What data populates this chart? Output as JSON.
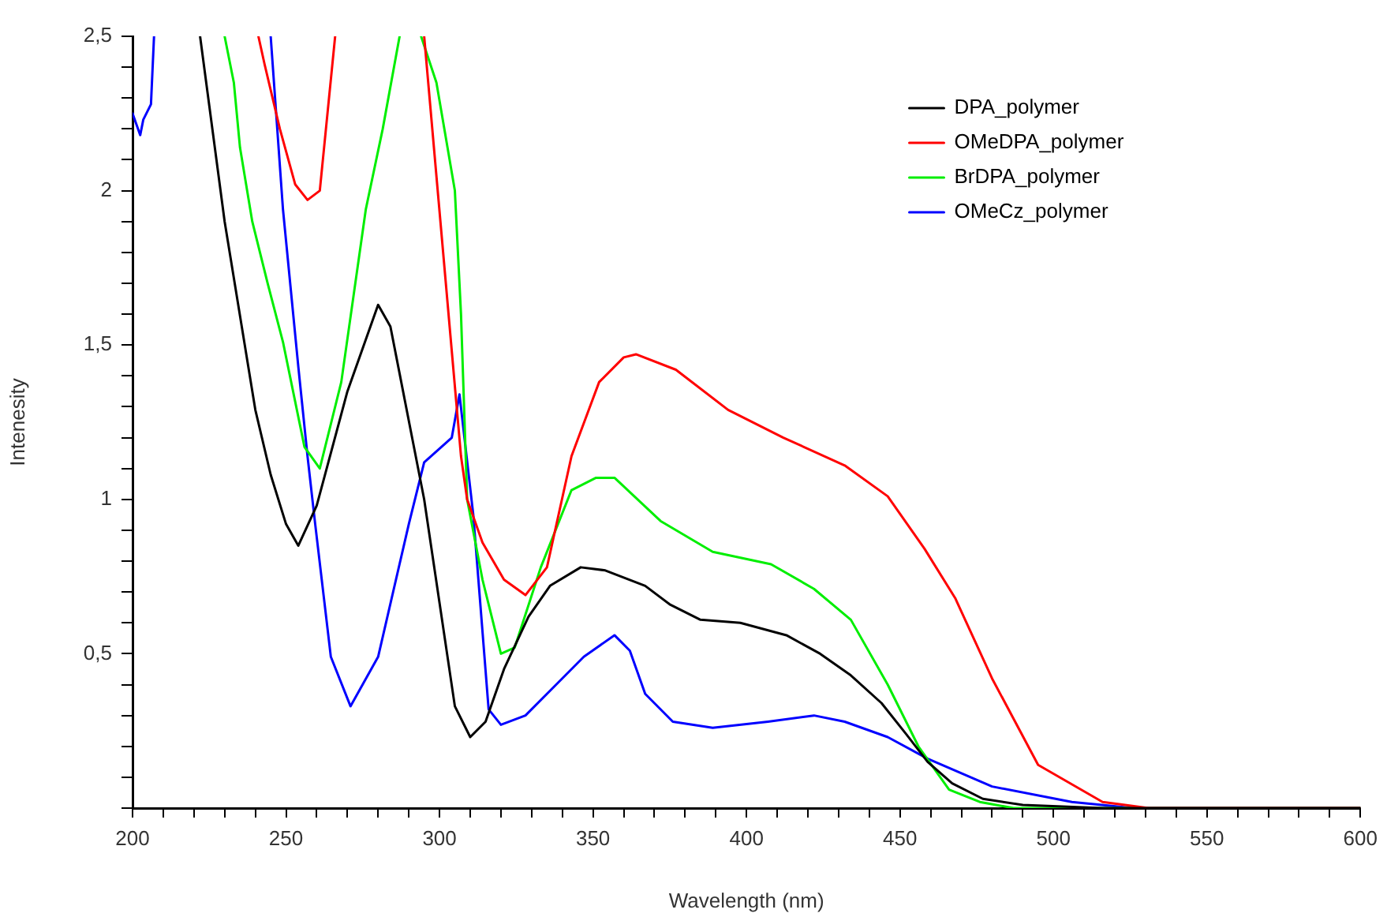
{
  "chart_data": {
    "type": "line",
    "xlabel": "Wavelength (nm)",
    "ylabel": "Intenesity",
    "legend": "top right",
    "grid": false,
    "marker": "none",
    "line_style": "solid",
    "xlim": [
      200,
      600
    ],
    "ylim": [
      0,
      2.5
    ],
    "xticks": [
      {
        "value": 200,
        "label": "200"
      },
      {
        "value": 210,
        "label": null
      },
      {
        "value": 220,
        "label": null
      },
      {
        "value": 230,
        "label": null
      },
      {
        "value": 240,
        "label": null
      },
      {
        "value": 250,
        "label": "250"
      },
      {
        "value": 260,
        "label": null
      },
      {
        "value": 270,
        "label": null
      },
      {
        "value": 280,
        "label": null
      },
      {
        "value": 290,
        "label": null
      },
      {
        "value": 300,
        "label": "300"
      },
      {
        "value": 310,
        "label": null
      },
      {
        "value": 320,
        "label": null
      },
      {
        "value": 330,
        "label": null
      },
      {
        "value": 340,
        "label": null
      },
      {
        "value": 350,
        "label": "350"
      },
      {
        "value": 360,
        "label": null
      },
      {
        "value": 370,
        "label": null
      },
      {
        "value": 380,
        "label": null
      },
      {
        "value": 390,
        "label": null
      },
      {
        "value": 400,
        "label": "400"
      },
      {
        "value": 410,
        "label": null
      },
      {
        "value": 420,
        "label": null
      },
      {
        "value": 430,
        "label": null
      },
      {
        "value": 440,
        "label": null
      },
      {
        "value": 450,
        "label": "450"
      },
      {
        "value": 460,
        "label": null
      },
      {
        "value": 470,
        "label": null
      },
      {
        "value": 480,
        "label": null
      },
      {
        "value": 490,
        "label": null
      },
      {
        "value": 500,
        "label": "500"
      },
      {
        "value": 510,
        "label": null
      },
      {
        "value": 520,
        "label": null
      },
      {
        "value": 530,
        "label": null
      },
      {
        "value": 540,
        "label": null
      },
      {
        "value": 550,
        "label": "550"
      },
      {
        "value": 560,
        "label": null
      },
      {
        "value": 570,
        "label": null
      },
      {
        "value": 580,
        "label": null
      },
      {
        "value": 590,
        "label": null
      },
      {
        "value": 600,
        "label": "600"
      }
    ],
    "yticks": [
      {
        "value": 0,
        "label": null
      },
      {
        "value": 0.1,
        "label": null
      },
      {
        "value": 0.2,
        "label": null
      },
      {
        "value": 0.3,
        "label": null
      },
      {
        "value": 0.4,
        "label": null
      },
      {
        "value": 0.5,
        "label": "0,5"
      },
      {
        "value": 0.6,
        "label": null
      },
      {
        "value": 0.7,
        "label": null
      },
      {
        "value": 0.8,
        "label": null
      },
      {
        "value": 0.9,
        "label": null
      },
      {
        "value": 1,
        "label": "1"
      },
      {
        "value": 1.1,
        "label": null
      },
      {
        "value": 1.2,
        "label": null
      },
      {
        "value": 1.3,
        "label": null
      },
      {
        "value": 1.4,
        "label": null
      },
      {
        "value": 1.5,
        "label": "1,5"
      },
      {
        "value": 1.6,
        "label": null
      },
      {
        "value": 1.7,
        "label": null
      },
      {
        "value": 1.8,
        "label": null
      },
      {
        "value": 1.9,
        "label": null
      },
      {
        "value": 2,
        "label": "2"
      },
      {
        "value": 2.1,
        "label": null
      },
      {
        "value": 2.2,
        "label": null
      },
      {
        "value": 2.3,
        "label": null
      },
      {
        "value": 2.4,
        "label": null
      },
      {
        "value": 2.5,
        "label": "2,5"
      }
    ],
    "series": [
      {
        "name": "DPA_polymer",
        "color": "#000000",
        "x": [
          222,
          230,
          240,
          245,
          250,
          254,
          260,
          270,
          280,
          284,
          295,
          305,
          310,
          315,
          321,
          329,
          336,
          346,
          354,
          367,
          375,
          385,
          398,
          413,
          424,
          434,
          444,
          452,
          459,
          467,
          477,
          490,
          516,
          600
        ],
        "values": [
          2.5,
          1.9,
          1.29,
          1.08,
          0.92,
          0.85,
          0.98,
          1.35,
          1.63,
          1.56,
          1.0,
          0.33,
          0.23,
          0.28,
          0.45,
          0.62,
          0.72,
          0.78,
          0.77,
          0.72,
          0.66,
          0.61,
          0.6,
          0.56,
          0.5,
          0.43,
          0.34,
          0.24,
          0.15,
          0.08,
          0.03,
          0.01,
          0,
          0
        ]
      },
      {
        "name": "OMeDPA_polymer",
        "color": "#ff0000",
        "x": [
          241,
          243,
          248,
          253,
          257,
          261,
          266,
          280,
          295,
          307,
          309,
          314,
          321,
          328,
          335,
          343,
          352,
          360,
          364,
          377,
          394,
          412,
          432,
          446,
          458,
          468,
          480,
          495,
          516,
          531,
          600
        ],
        "values": [
          2.5,
          2.41,
          2.2,
          2.02,
          1.97,
          2.0,
          2.5,
          null,
          2.5,
          1.14,
          1.0,
          0.86,
          0.74,
          0.69,
          0.78,
          1.14,
          1.38,
          1.46,
          1.47,
          1.42,
          1.29,
          1.2,
          1.11,
          1.01,
          0.84,
          0.68,
          0.42,
          0.14,
          0.02,
          0,
          0
        ]
      },
      {
        "name": "BrDPA_polymer",
        "color": "#00ee00",
        "x": [
          230,
          233,
          235,
          239,
          244,
          249,
          256,
          261,
          268,
          276,
          281.5,
          287,
          290,
          294,
          299,
          305,
          307,
          309,
          314,
          320,
          324.5,
          333,
          343,
          351,
          357,
          372,
          389,
          408,
          422,
          434,
          446,
          456,
          466,
          476,
          487,
          600
        ],
        "values": [
          2.5,
          2.35,
          2.14,
          1.9,
          1.7,
          1.51,
          1.17,
          1.1,
          1.38,
          1.94,
          2.2,
          2.5,
          null,
          2.5,
          2.35,
          2.0,
          1.6,
          1.0,
          0.74,
          0.5,
          0.52,
          0.78,
          1.03,
          1.07,
          1.07,
          0.93,
          0.83,
          0.79,
          0.71,
          0.61,
          0.4,
          0.2,
          0.06,
          0.02,
          0,
          0
        ]
      },
      {
        "name": "OMeCz_polymer",
        "color": "#0000ff",
        "x": [
          200,
          202.5,
          203.5,
          206,
          207,
          220,
          245,
          249,
          254,
          257,
          259.5,
          264.6,
          271,
          280,
          290,
          295,
          304,
          306.5,
          311,
          316,
          320,
          328,
          338,
          347,
          357,
          362,
          367,
          376,
          389,
          407,
          422,
          432,
          446,
          459,
          480,
          506,
          526,
          600
        ],
        "values": [
          2.25,
          2.18,
          2.23,
          2.28,
          2.5,
          null,
          2.5,
          1.94,
          1.43,
          1.14,
          0.92,
          0.49,
          0.33,
          0.49,
          0.92,
          1.12,
          1.2,
          1.34,
          0.95,
          0.32,
          0.27,
          0.3,
          0.4,
          0.49,
          0.56,
          0.51,
          0.37,
          0.28,
          0.26,
          0.28,
          0.3,
          0.28,
          0.23,
          0.16,
          0.07,
          0.02,
          0,
          0
        ]
      }
    ]
  }
}
